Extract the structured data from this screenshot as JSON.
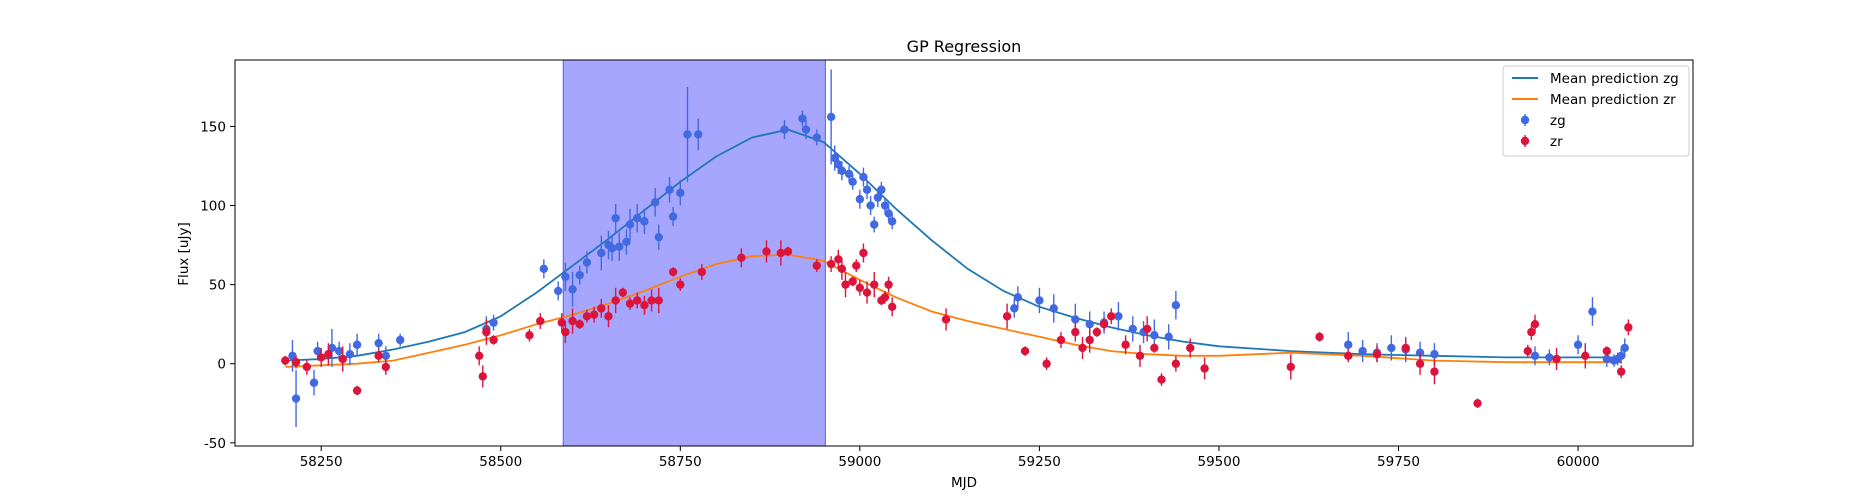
{
  "chart_data": {
    "type": "scatter",
    "title": "GP Regression",
    "xlabel": "MJD",
    "ylabel": "Flux [uJy]",
    "xlim": [
      58130,
      60160
    ],
    "ylim": [
      -52,
      192
    ],
    "xticks": [
      58250,
      58500,
      58750,
      59000,
      59250,
      59500,
      59750,
      60000
    ],
    "yticks": [
      -50,
      0,
      50,
      100,
      150
    ],
    "grid": false,
    "legend_position": "top-right",
    "shaded_region": {
      "x_start": 58587,
      "x_end": 58952,
      "color": "#a6a6ff"
    },
    "lines": [
      {
        "name": "Mean prediction zg",
        "color": "#1f77b4",
        "x": [
          58200,
          58250,
          58300,
          58350,
          58400,
          58450,
          58500,
          58550,
          58600,
          58650,
          58700,
          58750,
          58800,
          58850,
          58900,
          58950,
          59000,
          59050,
          59100,
          59150,
          59200,
          59250,
          59300,
          59350,
          59400,
          59450,
          59500,
          59600,
          59700,
          59800,
          59900,
          60000,
          60060
        ],
        "y": [
          2,
          3,
          5,
          9,
          14,
          20,
          30,
          45,
          62,
          79,
          97,
          115,
          131,
          143,
          148,
          140,
          120,
          98,
          78,
          60,
          46,
          36,
          29,
          23,
          18,
          14,
          11,
          8,
          6,
          5,
          4,
          4,
          4
        ]
      },
      {
        "name": "Mean prediction zr",
        "color": "#ff7f0e",
        "x": [
          58200,
          58250,
          58300,
          58350,
          58400,
          58450,
          58500,
          58550,
          58600,
          58650,
          58700,
          58750,
          58800,
          58850,
          58900,
          58950,
          59000,
          59050,
          59100,
          59150,
          59200,
          59250,
          59300,
          59350,
          59400,
          59450,
          59500,
          59600,
          59700,
          59800,
          59900,
          60000,
          60060
        ],
        "y": [
          -2,
          -1,
          0,
          2,
          7,
          12,
          18,
          25,
          31,
          38,
          46,
          55,
          63,
          68,
          69,
          65,
          53,
          42,
          33,
          27,
          22,
          17,
          12,
          8,
          6,
          5,
          5,
          7,
          5,
          2,
          1,
          1,
          1
        ]
      }
    ],
    "series": [
      {
        "name": "zg",
        "color": "#4169e1",
        "x": [
          58210,
          58215,
          58240,
          58245,
          58265,
          58275,
          58290,
          58300,
          58330,
          58340,
          58360,
          58480,
          58490,
          58560,
          58580,
          58590,
          58600,
          58610,
          58620,
          58640,
          58650,
          58655,
          58660,
          58665,
          58675,
          58680,
          58690,
          58700,
          58715,
          58720,
          58735,
          58740,
          58750,
          58760,
          58775,
          58895,
          58920,
          58925,
          58940,
          58960,
          58965,
          58970,
          58975,
          58985,
          58990,
          59000,
          59005,
          59010,
          59015,
          59020,
          59025,
          59030,
          59035,
          59040,
          59045,
          59215,
          59220,
          59250,
          59270,
          59300,
          59320,
          59340,
          59360,
          59380,
          59395,
          59410,
          59430,
          59440,
          59680,
          59700,
          59720,
          59740,
          59760,
          59780,
          59800,
          59940,
          59960,
          60000,
          60020,
          60040,
          60050,
          60055,
          60060,
          60065
        ],
        "y": [
          5,
          -22,
          -12,
          8,
          10,
          8,
          6,
          12,
          13,
          5,
          15,
          22,
          26,
          60,
          46,
          55,
          47,
          56,
          64,
          70,
          75,
          73,
          92,
          74,
          77,
          88,
          92,
          90,
          102,
          80,
          110,
          93,
          108,
          145,
          145,
          148,
          155,
          148,
          143,
          156,
          130,
          126,
          122,
          120,
          115,
          104,
          118,
          110,
          100,
          88,
          105,
          110,
          100,
          95,
          90,
          35,
          42,
          40,
          35,
          28,
          25,
          26,
          30,
          22,
          20,
          18,
          17,
          37,
          12,
          8,
          7,
          10,
          9,
          7,
          6,
          5,
          4,
          12,
          33,
          3,
          2,
          3,
          5,
          10
        ],
        "err": [
          10,
          18,
          8,
          6,
          12,
          6,
          7,
          7,
          6,
          6,
          4,
          8,
          5,
          6,
          6,
          9,
          11,
          6,
          7,
          11,
          9,
          8,
          9,
          9,
          8,
          10,
          9,
          8,
          9,
          8,
          8,
          6,
          8,
          30,
          10,
          6,
          5,
          6,
          5,
          30,
          8,
          6,
          6,
          5,
          5,
          6,
          6,
          6,
          6,
          5,
          6,
          5,
          5,
          5,
          5,
          6,
          7,
          8,
          9,
          10,
          8,
          7,
          9,
          8,
          7,
          10,
          8,
          9,
          8,
          7,
          6,
          8,
          8,
          7,
          7,
          6,
          5,
          6,
          9,
          5,
          4,
          4,
          5,
          6
        ]
      },
      {
        "name": "zr",
        "color": "#dc143c",
        "x": [
          58200,
          58215,
          58230,
          58250,
          58260,
          58280,
          58300,
          58330,
          58340,
          58470,
          58475,
          58480,
          58490,
          58540,
          58555,
          58585,
          58590,
          58600,
          58610,
          58620,
          58630,
          58640,
          58650,
          58660,
          58670,
          58680,
          58690,
          58700,
          58710,
          58720,
          58740,
          58750,
          58780,
          58835,
          58870,
          58890,
          58900,
          58940,
          58960,
          58970,
          58975,
          58980,
          58990,
          58995,
          59000,
          59005,
          59010,
          59020,
          59030,
          59035,
          59040,
          59045,
          59120,
          59205,
          59230,
          59260,
          59280,
          59300,
          59310,
          59320,
          59330,
          59340,
          59350,
          59370,
          59390,
          59400,
          59410,
          59420,
          59440,
          59460,
          59480,
          59600,
          59640,
          59680,
          59720,
          59760,
          59780,
          59800,
          59860,
          59930,
          59935,
          59940,
          59970,
          60010,
          60040,
          60060,
          60070
        ],
        "y": [
          2,
          1,
          -2,
          4,
          6,
          3,
          -17,
          5,
          -2,
          5,
          -8,
          20,
          15,
          18,
          27,
          26,
          20,
          27,
          25,
          30,
          31,
          35,
          30,
          40,
          45,
          38,
          40,
          37,
          40,
          40,
          58,
          50,
          58,
          67,
          71,
          70,
          71,
          62,
          63,
          66,
          60,
          50,
          52,
          62,
          48,
          70,
          45,
          50,
          40,
          42,
          50,
          36,
          28,
          30,
          8,
          0,
          15,
          20,
          10,
          15,
          20,
          25,
          30,
          12,
          5,
          22,
          10,
          -10,
          0,
          10,
          -3,
          -2,
          17,
          5,
          6,
          10,
          0,
          -5,
          -25,
          8,
          20,
          25,
          3,
          5,
          8,
          -5,
          23
        ]
      }
    ]
  }
}
